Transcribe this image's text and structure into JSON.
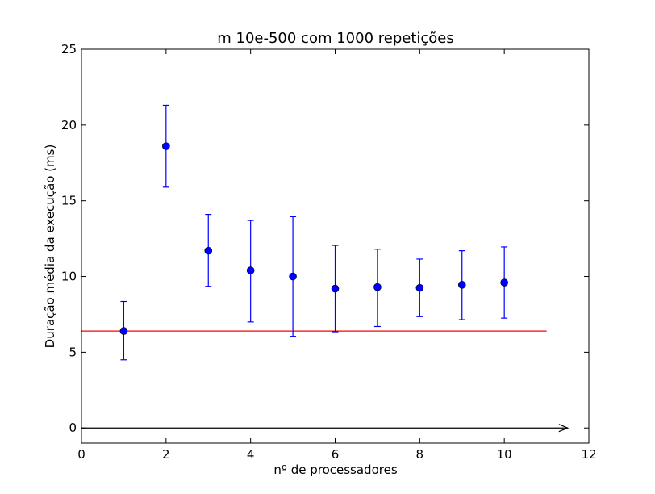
{
  "chart_data": {
    "type": "scatter",
    "title": "m 10e-500 com 1000 repetições",
    "xlabel": "nº de processadores",
    "ylabel": "Duração média da execução (ms)",
    "xlim": [
      0,
      12
    ],
    "ylim": [
      -1,
      25
    ],
    "xticks": [
      0,
      2,
      4,
      6,
      8,
      10,
      12
    ],
    "yticks": [
      0,
      5,
      10,
      15,
      20,
      25
    ],
    "grid": false,
    "series": [
      {
        "color": "#0000ff",
        "x": [
          1,
          2,
          3,
          4,
          5,
          6,
          7,
          8,
          9,
          10
        ],
        "y": [
          6.4,
          18.6,
          11.7,
          10.4,
          10.0,
          9.2,
          9.3,
          9.25,
          9.45,
          9.6
        ],
        "err_low": [
          4.5,
          15.9,
          9.35,
          7.0,
          6.05,
          6.35,
          6.7,
          7.35,
          7.15,
          7.25
        ],
        "err_high": [
          8.35,
          21.3,
          14.1,
          13.7,
          13.95,
          12.05,
          11.8,
          11.15,
          11.7,
          11.95
        ]
      }
    ],
    "reference_line": {
      "y": 6.4,
      "x": [
        0,
        11
      ],
      "color": "#ff0000"
    },
    "arrow": {
      "y": 0,
      "x": [
        0,
        11.5
      ],
      "color": "#000000"
    }
  }
}
